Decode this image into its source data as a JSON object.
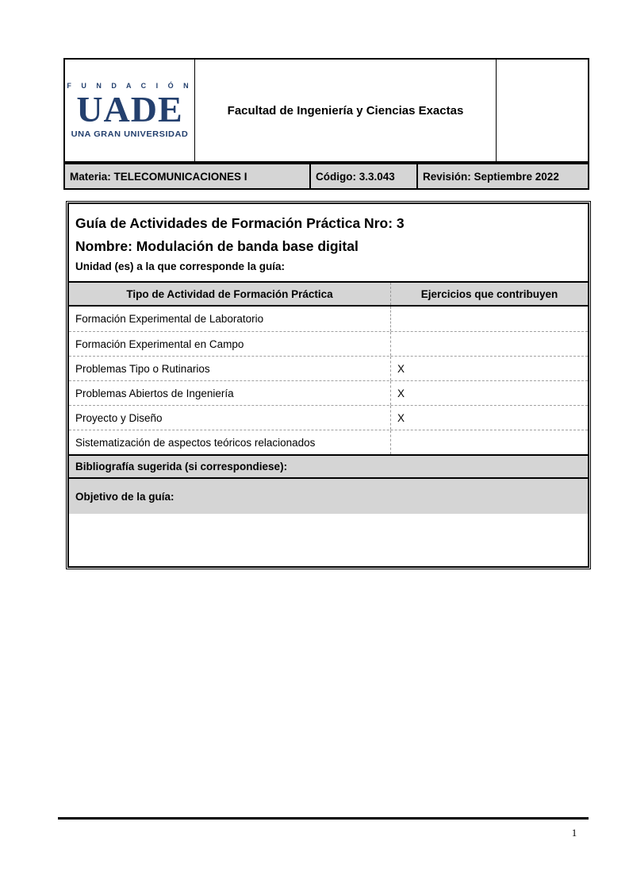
{
  "page": {
    "number": "1"
  },
  "header": {
    "logo": {
      "top": "F U N D A C I Ó N",
      "name": "UADE",
      "tagline": "UNA GRAN UNIVERSIDAD"
    },
    "faculty": "Facultad de Ingeniería y Ciencias Exactas",
    "materia_label": "Materia: TELECOMUNICACIONES I",
    "codigo_label": "Código: 3.3.043",
    "revision_label": "Revisión: Septiembre 2022"
  },
  "guide": {
    "title": "Guía de Actividades de Formación Práctica Nro: 3",
    "name_line": "Nombre: Modulación de banda base digital",
    "unit_line": "Unidad (es) a la que corresponde la guía:",
    "activity_table": {
      "col1_header": "Tipo de Actividad de Formación Práctica",
      "col2_header": "Ejercicios que contribuyen",
      "rows": [
        {
          "label": "Formación Experimental de Laboratorio",
          "value": ""
        },
        {
          "label": "Formación Experimental en Campo",
          "value": ""
        },
        {
          "label": "Problemas Tipo o Rutinarios",
          "value": "X"
        },
        {
          "label": "Problemas Abiertos de Ingeniería",
          "value": "X"
        },
        {
          "label": "Proyecto y Diseño",
          "value": "X"
        },
        {
          "label": "Sistematización de aspectos teóricos relacionados",
          "value": ""
        }
      ]
    },
    "bibliography_label": "Bibliografía sugerida (si correspondiese):",
    "objective_label": "Objetivo de la guía:"
  },
  "colors": {
    "navy": "#24406e",
    "gray_fill": "#d5d5d5"
  }
}
